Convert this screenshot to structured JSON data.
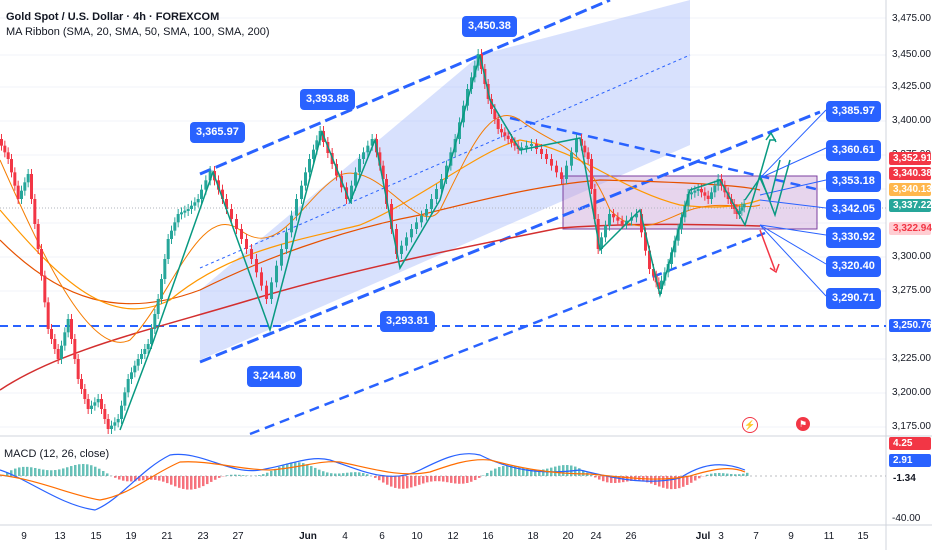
{
  "header": {
    "title": "Gold Spot / U.S. Dollar · 4h · FOREXCOM",
    "ma_ribbon": "MA Ribbon (SMA, 20, SMA, 50, SMA, 100, SMA, 200)",
    "macd": "MACD (12, 26, close)"
  },
  "price_axis": [
    "3,475.00",
    "3,450.00",
    "3,425.00",
    "3,400.00",
    "3,375.00",
    "3,325.00",
    "3,300.00",
    "3,275.00",
    "3,225.00",
    "3,200.00",
    "3,175.00"
  ],
  "macd_axis": [
    "-40.00"
  ],
  "price_tags": {
    "t1": {
      "label": "3,352.91",
      "color": "#f23645"
    },
    "t2": {
      "label": "3,340.38",
      "color": "#f23645"
    },
    "t3": {
      "label": "3,340.13",
      "color": "#ff9800"
    },
    "t4": {
      "label": "3,337.22",
      "color": "#26a69a"
    },
    "t5": {
      "label": "3,322.94",
      "color": "#f23645"
    },
    "t6": {
      "label": "3,250.76",
      "color": "#2962ff"
    }
  },
  "macd_tags": {
    "m1": {
      "label": "4.25",
      "color": "#f23645"
    },
    "m2": {
      "label": "2.91",
      "color": "#2962ff"
    },
    "m3": {
      "label": "-1.34",
      "color": "#131722"
    }
  },
  "callouts": {
    "c1": "3,450.38",
    "c2": "3,393.88",
    "c3": "3,365.97",
    "c4": "3,293.81",
    "c5": "3,244.80",
    "c6": "3,385.97",
    "c7": "3,360.61",
    "c8": "3,353.18",
    "c9": "3,342.05",
    "c10": "3,330.92",
    "c11": "3,320.40",
    "c12": "3,290.71"
  },
  "time_axis": [
    "9",
    "13",
    "15",
    "19",
    "21",
    "23",
    "27",
    "Jun",
    "4",
    "6",
    "10",
    "12",
    "16",
    "18",
    "20",
    "24",
    "26",
    "Jul",
    "3",
    "7",
    "9",
    "11",
    "15"
  ],
  "colors": {
    "up": "#26a69a",
    "down": "#f23645",
    "accent": "#2962ff"
  },
  "icons": {
    "event1": "lightning-icon",
    "event2": "flag-icon"
  }
}
